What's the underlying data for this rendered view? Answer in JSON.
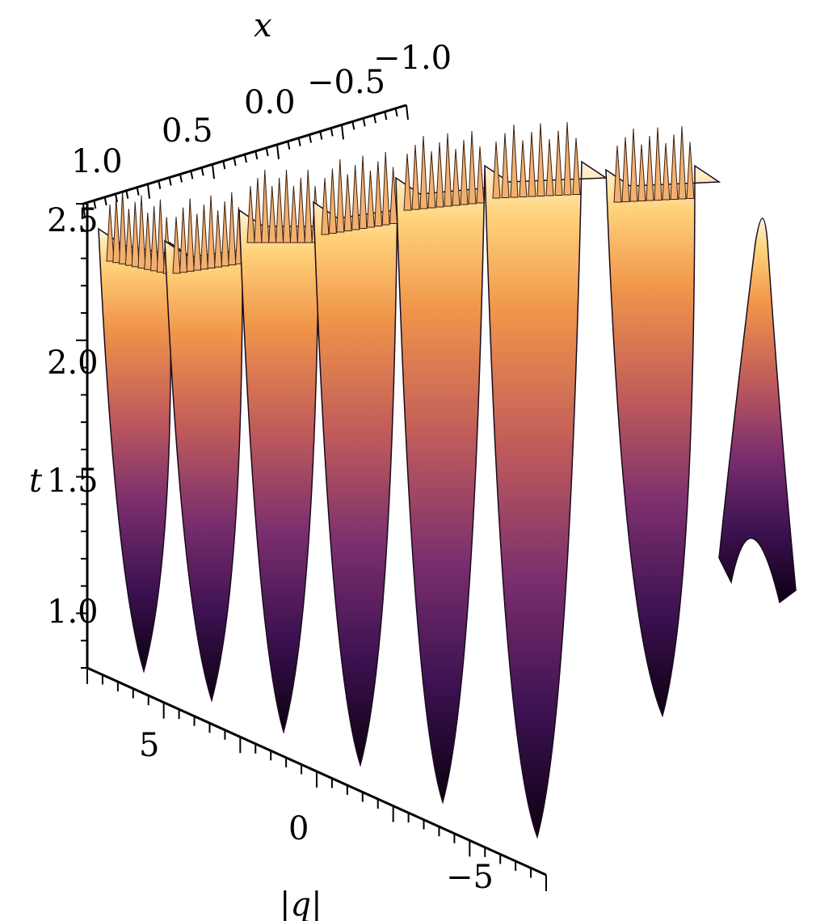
{
  "chart_data": {
    "type": "surface3d",
    "title": "",
    "axes": {
      "x": {
        "label": "x",
        "range": [
          -1.0,
          1.0
        ],
        "ticks": [
          1.0,
          0.5,
          0.0,
          -0.5,
          -1.0
        ],
        "tick_labels": [
          "1.0",
          "0.5",
          "0.0",
          "−0.5",
          "−1.0"
        ]
      },
      "t": {
        "label": "t",
        "range": [
          0.8,
          2.5
        ],
        "ticks": [
          1.0,
          1.5,
          2.0,
          2.5
        ],
        "tick_labels": [
          "1.0",
          "1.5",
          "2.0",
          "2.5"
        ]
      },
      "q": {
        "label": "|q|",
        "range": [
          -7,
          8
        ],
        "ticks": [
          5,
          0,
          -5
        ],
        "tick_labels": [
          "5",
          "0",
          "−5"
        ]
      }
    },
    "surface": {
      "description_series": "periodic breather-like peaks of |q| along t",
      "peak_t_values": [
        7.4,
        5.2,
        3.0,
        0.8,
        -1.4,
        -3.6,
        -5.8
      ],
      "colormap": [
        "#0d0010",
        "#3b1150",
        "#7a2e6e",
        "#c05c5a",
        "#f0964a",
        "#ffd27a",
        "#ffffff"
      ]
    },
    "grid": false,
    "legend": "none"
  }
}
